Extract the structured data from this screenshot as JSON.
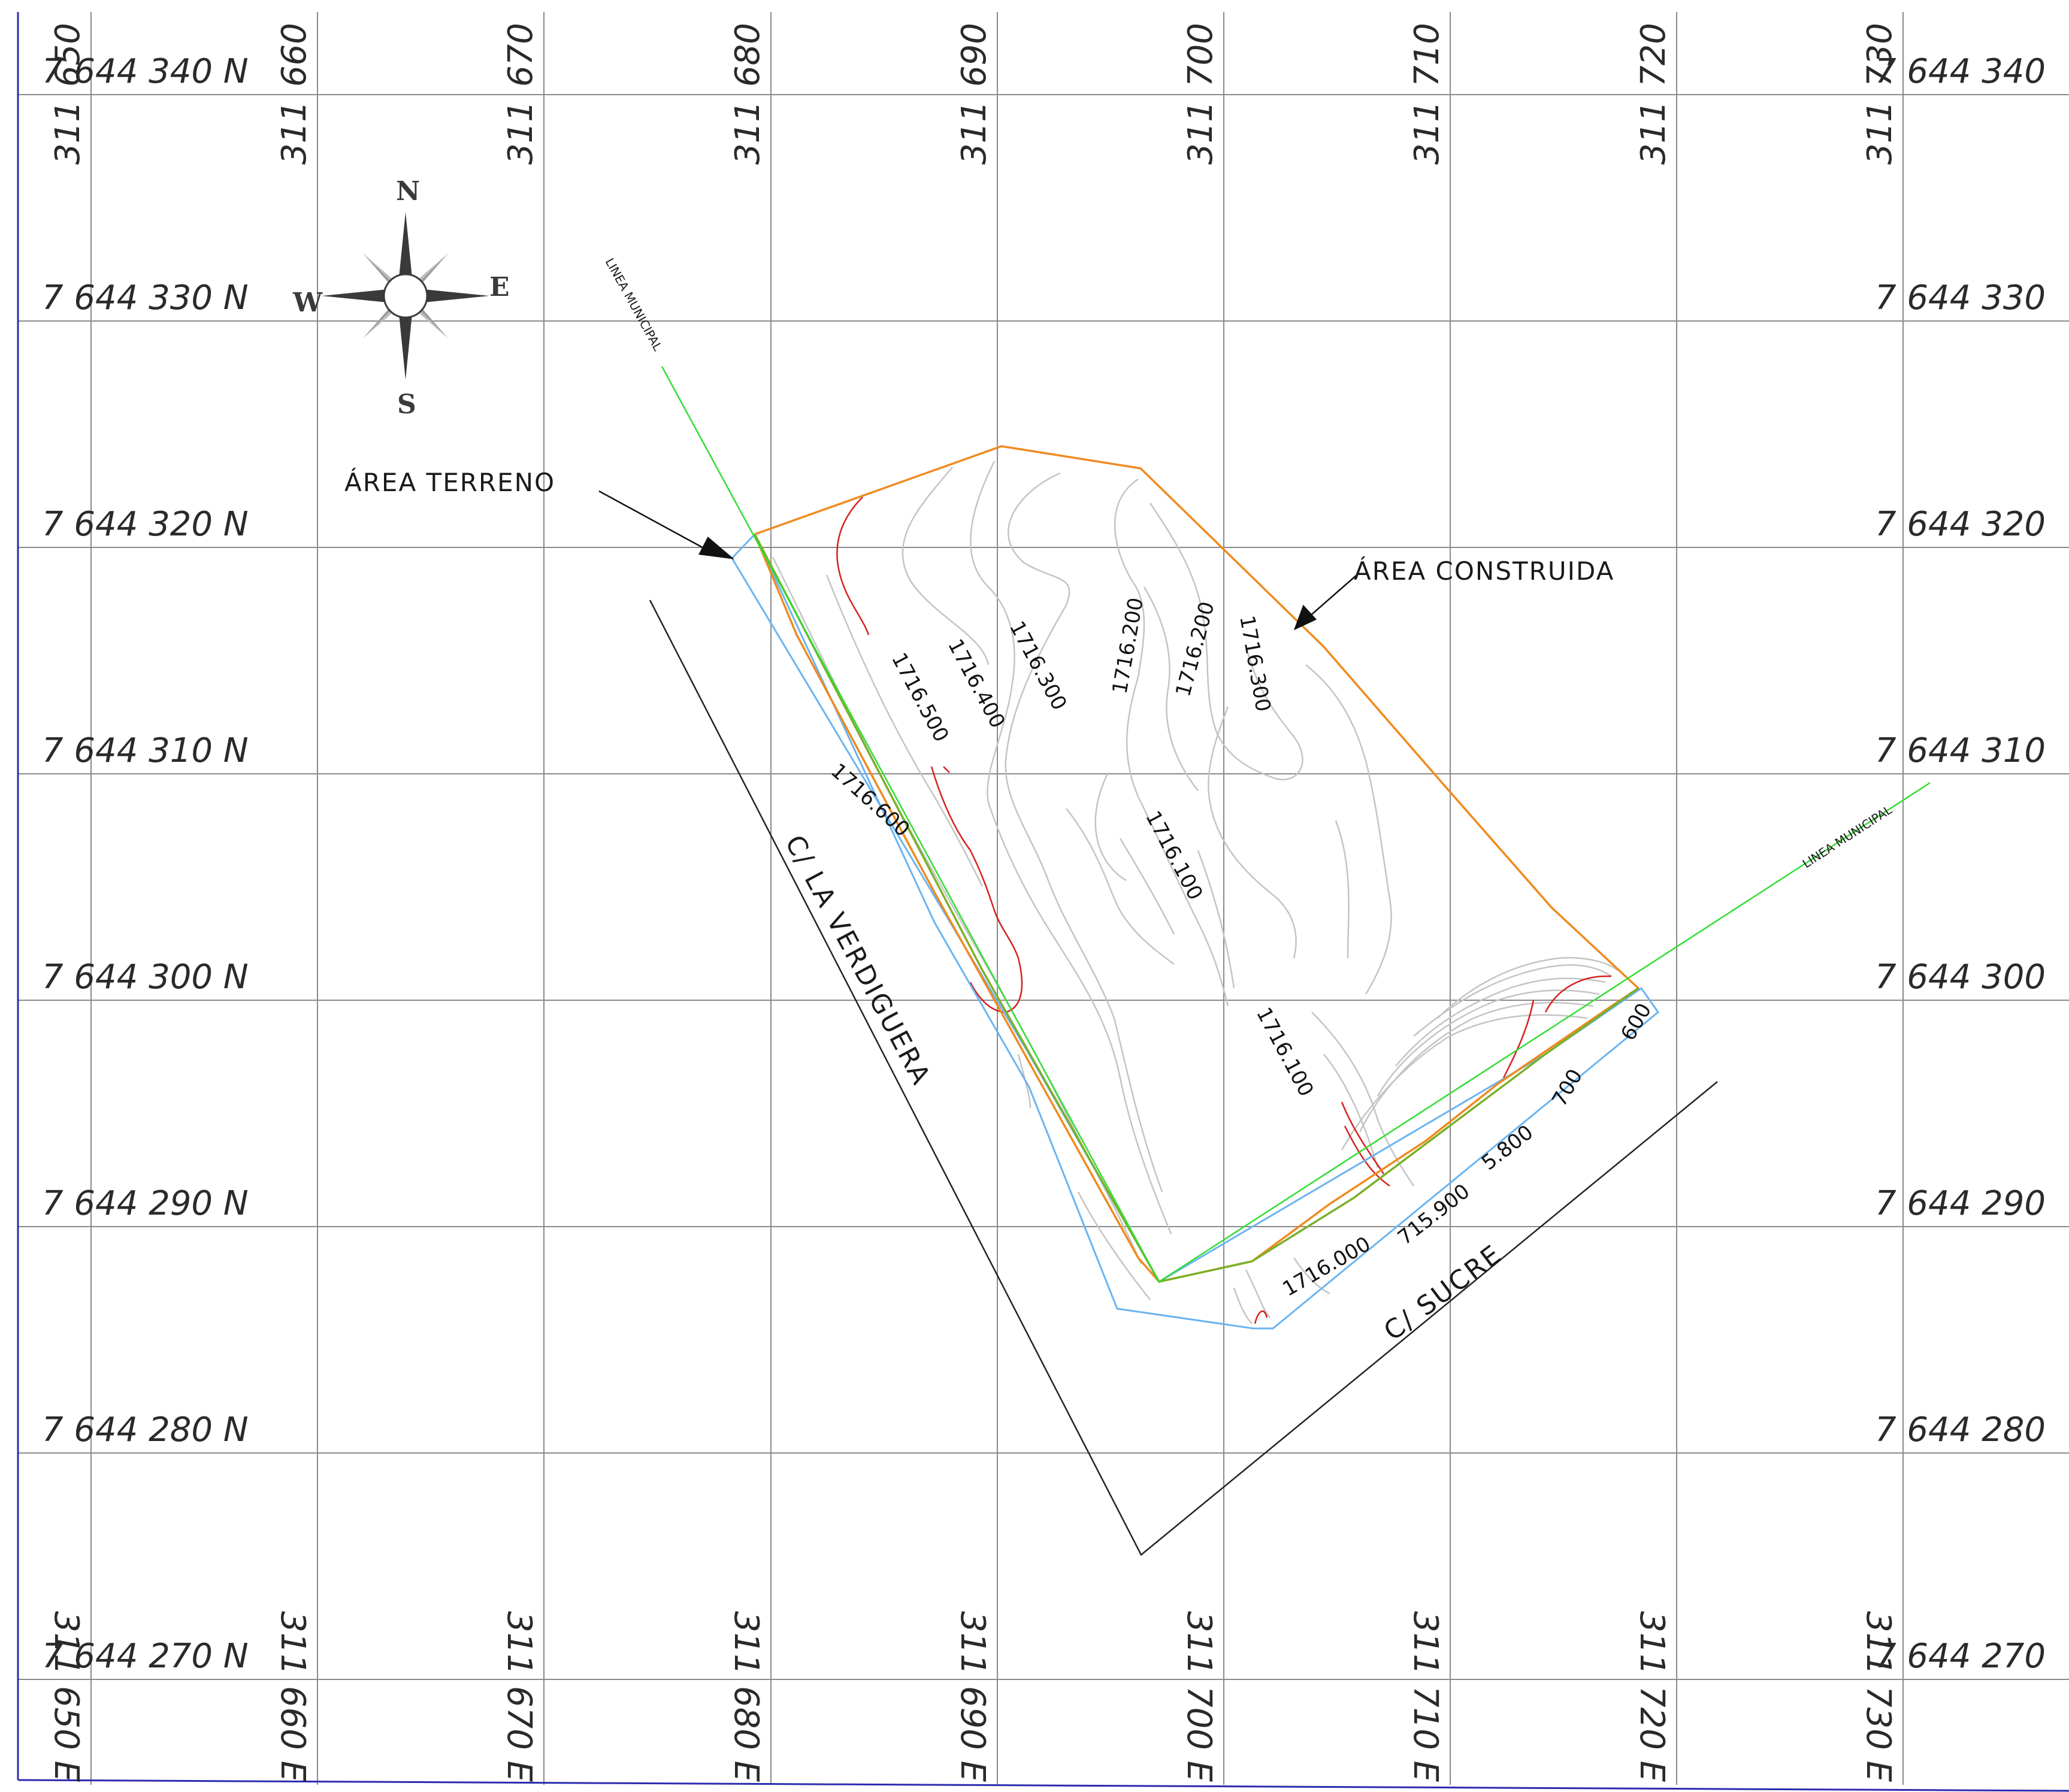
{
  "grid": {
    "northings": [
      "7 644 340 N",
      "7 644 330 N",
      "7 644 320 N",
      "7 644 310 N",
      "7 644 300 N",
      "7 644 290 N",
      "7 644 280 N",
      "7 644 270 N"
    ],
    "northings_right": [
      "7 644 340",
      "7 644 330",
      "7 644 320",
      "7 644 310",
      "7 644 300",
      "7 644 290",
      "7 644 280",
      "7 644 270"
    ],
    "eastings_top_prefix": "311",
    "eastings_top": [
      "650",
      "660",
      "670",
      "680",
      "690",
      "700",
      "710",
      "720",
      "730"
    ],
    "eastings_bottom": [
      "650 E",
      "660 E",
      "670 E",
      "680 E",
      "690 E",
      "700 E",
      "710 E",
      "720 E",
      "730 E"
    ]
  },
  "compass": {
    "north": "N",
    "south": "S",
    "east": "E",
    "west": "W"
  },
  "labels": {
    "area_terreno": "ÁREA TERRENO",
    "area_construida": "ÁREA CONSTRUIDA",
    "linea_municipal_1": "LINEA MUNICIPAL",
    "linea_municipal_2": "LINEA MUNICIPAL",
    "street_verdiguera": "C/ LA VERDIGUERA",
    "street_sucre": "C/ SUCRE"
  },
  "contours": [
    {
      "text": "1716.600"
    },
    {
      "text": "1716.500"
    },
    {
      "text": "1716.400"
    },
    {
      "text": "1716.300"
    },
    {
      "text": "1716.200"
    },
    {
      "text": "1716.200"
    },
    {
      "text": "1716.300"
    },
    {
      "text": "1716.100"
    },
    {
      "text": "1716.100"
    },
    {
      "text": "1716.000"
    },
    {
      "text": "715.900"
    },
    {
      "text": "5.800"
    },
    {
      "text": "700"
    },
    {
      "text": "600"
    }
  ],
  "colors": {
    "grid": "#8a8a8a",
    "frame": "#2b2bb0",
    "area_construida": "#f08a1e",
    "area_terreno": "#6ab4f0",
    "linea_municipal": "#33dd33",
    "shared_boundary": "#7bb02a",
    "contour": "#c4c4c4",
    "contour_red": "#d62020",
    "street_edge": "#222222",
    "compass": "#3a3a3a"
  }
}
